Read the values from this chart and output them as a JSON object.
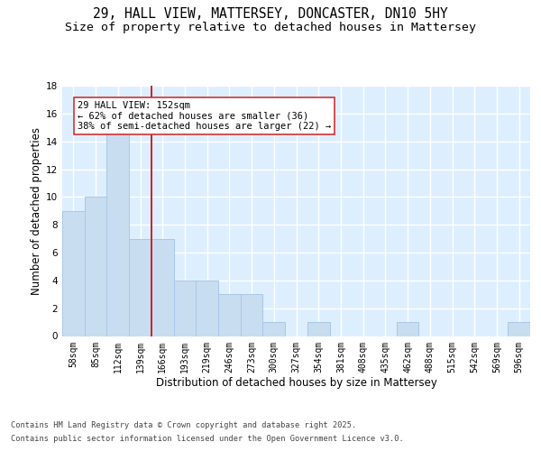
{
  "title_line1": "29, HALL VIEW, MATTERSEY, DONCASTER, DN10 5HY",
  "title_line2": "Size of property relative to detached houses in Mattersey",
  "xlabel": "Distribution of detached houses by size in Mattersey",
  "ylabel": "Number of detached properties",
  "categories": [
    "58sqm",
    "85sqm",
    "112sqm",
    "139sqm",
    "166sqm",
    "193sqm",
    "219sqm",
    "246sqm",
    "273sqm",
    "300sqm",
    "327sqm",
    "354sqm",
    "381sqm",
    "408sqm",
    "435sqm",
    "462sqm",
    "488sqm",
    "515sqm",
    "542sqm",
    "569sqm",
    "596sqm"
  ],
  "values": [
    9,
    10,
    15,
    7,
    7,
    4,
    4,
    3,
    3,
    1,
    0,
    1,
    0,
    0,
    0,
    1,
    0,
    0,
    0,
    0,
    1
  ],
  "bar_color": "#c9ddf0",
  "bar_edge_color": "#a8c8e8",
  "vline_x": 3.5,
  "vline_color": "#cc2222",
  "annotation_text": "29 HALL VIEW: 152sqm\n← 62% of detached houses are smaller (36)\n38% of semi-detached houses are larger (22) →",
  "annotation_box_color": "#ffffff",
  "annotation_box_edge": "#cc2222",
  "footer_line1": "Contains HM Land Registry data © Crown copyright and database right 2025.",
  "footer_line2": "Contains public sector information licensed under the Open Government Licence v3.0.",
  "ylim": [
    0,
    18
  ],
  "yticks": [
    0,
    2,
    4,
    6,
    8,
    10,
    12,
    14,
    16,
    18
  ],
  "bg_color": "#ddeeff",
  "grid_color": "#ffffff",
  "fig_bg": "#ffffff",
  "title_fontsize": 10.5,
  "subtitle_fontsize": 9.5,
  "axis_fontsize": 8.5,
  "tick_fontsize": 7.0,
  "ann_fontsize": 7.5
}
